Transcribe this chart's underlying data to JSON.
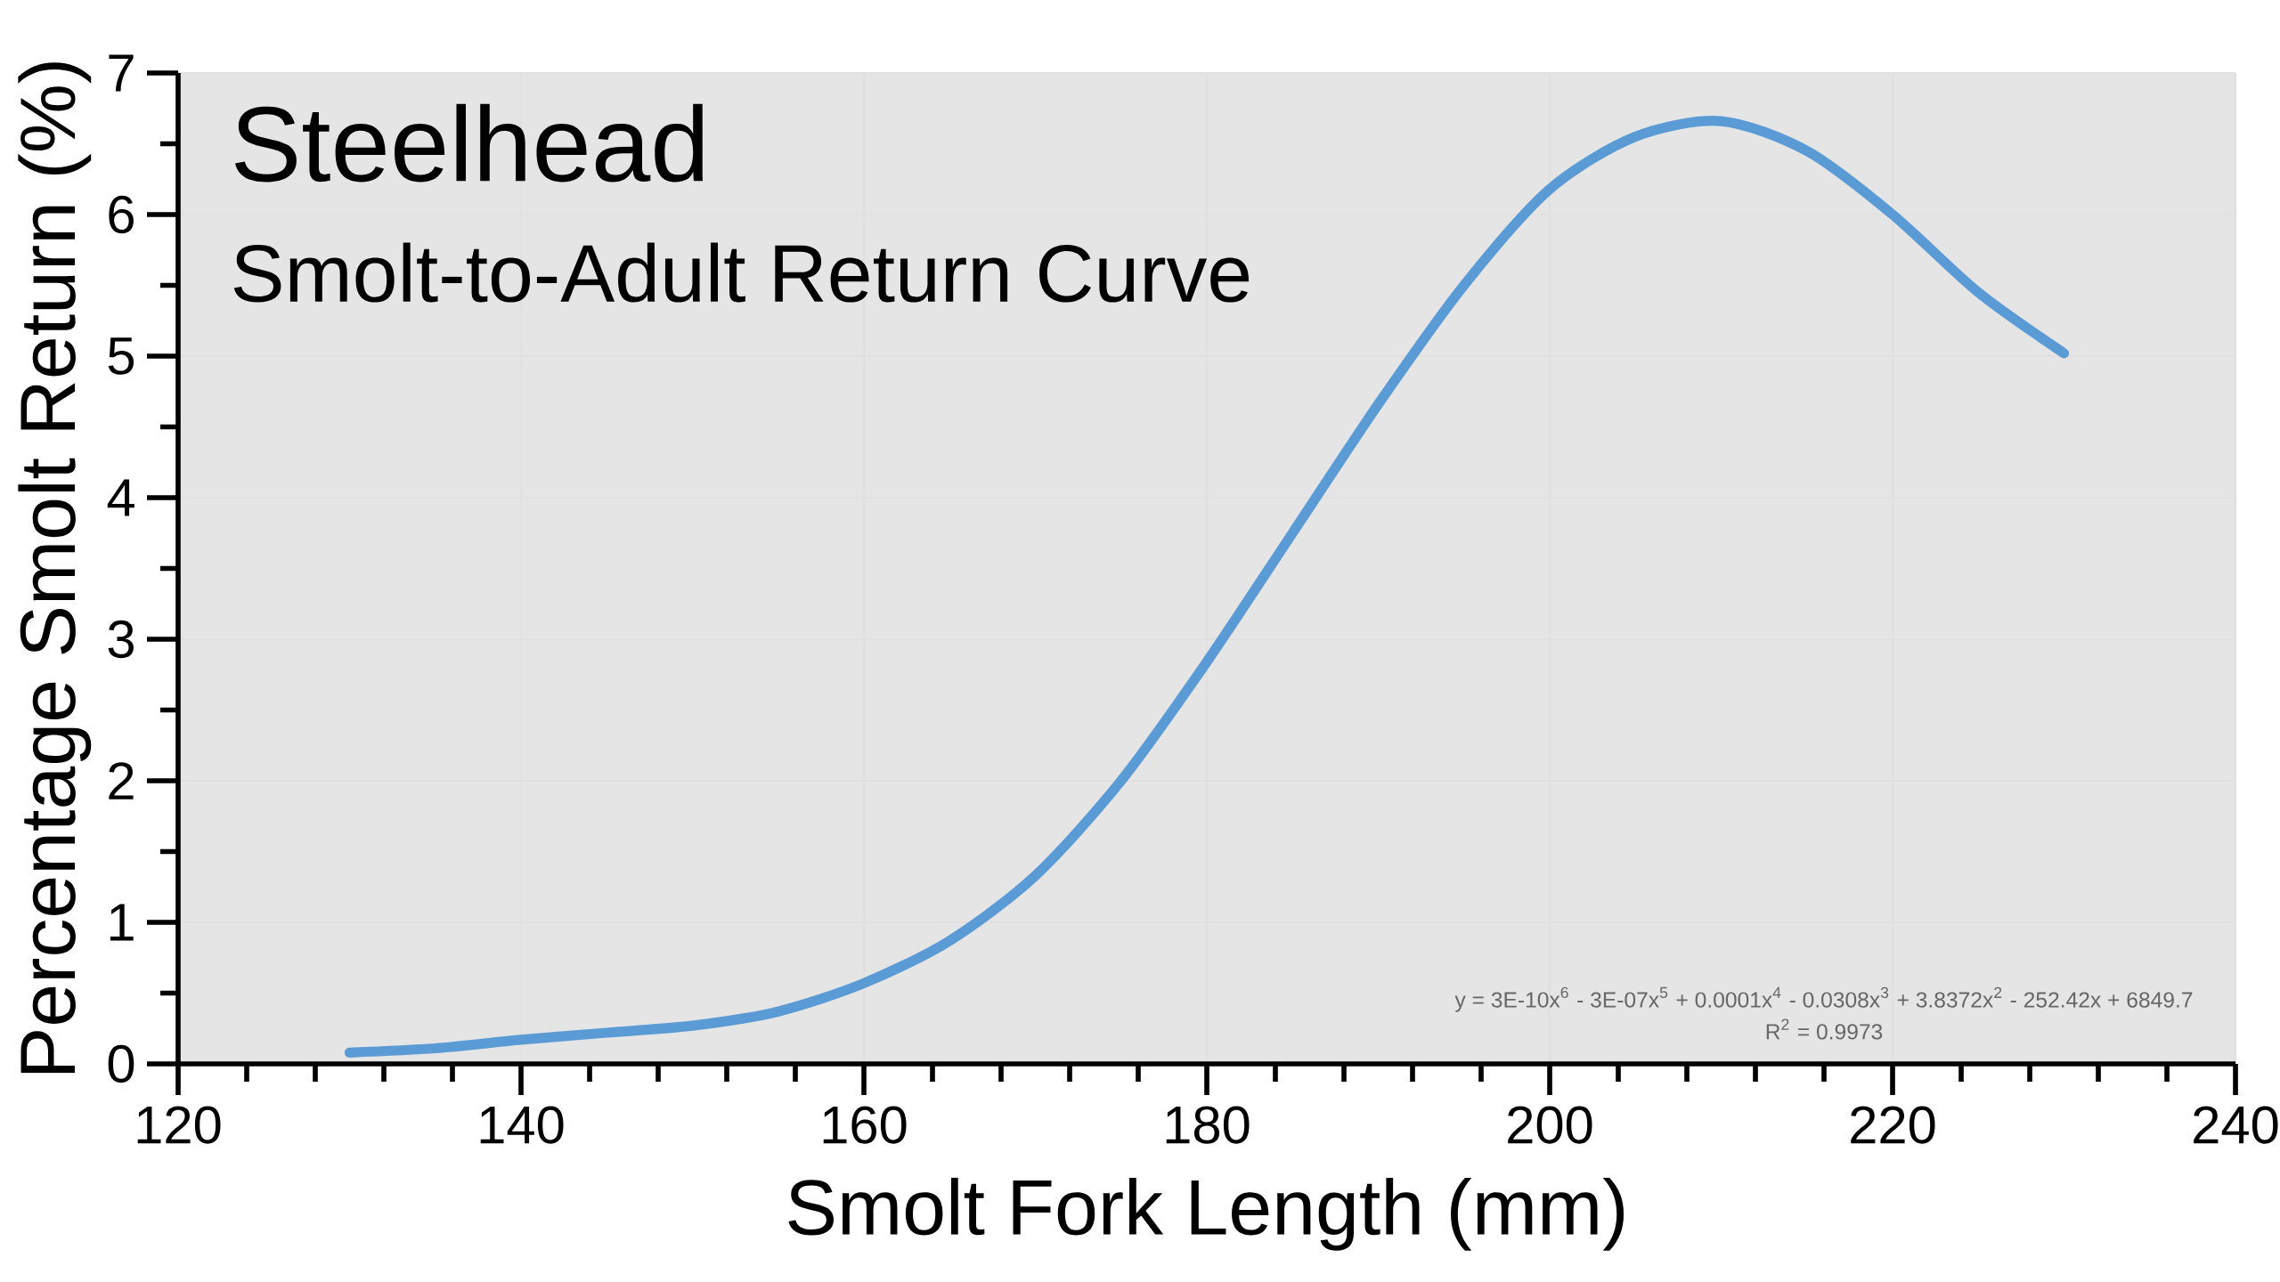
{
  "chart_data": {
    "type": "line",
    "title": "Steelhead",
    "subtitle": "Smolt-to-Adult Return Curve",
    "xlabel": "Smolt Fork Length (mm)",
    "ylabel": "Percentage Smolt Return (%)",
    "x": [
      130,
      135,
      140,
      145,
      150,
      155,
      160,
      165,
      170,
      175,
      180,
      185,
      190,
      195,
      200,
      205,
      210,
      215,
      220,
      225,
      230
    ],
    "series": [
      {
        "color": "#5b9bd5",
        "values": [
          0.08,
          0.11,
          0.17,
          0.22,
          0.27,
          0.37,
          0.57,
          0.87,
          1.33,
          2.0,
          2.84,
          3.75,
          4.66,
          5.5,
          6.18,
          6.55,
          6.66,
          6.45,
          6.0,
          5.45,
          5.02
        ]
      }
    ],
    "xlim": [
      120,
      240
    ],
    "xticks": [
      120,
      140,
      160,
      180,
      200,
      220,
      240
    ],
    "ylim": [
      0,
      7
    ],
    "yticks": [
      0,
      1,
      2,
      3,
      4,
      5,
      6,
      7
    ],
    "grid": true,
    "annotations": [
      "y = 3E-10x$^{6}$ - 3E-07x$^{5}$ + 0.0001x$^{4}$ - 0.0308x$^{3}$ + 3.8372x$^{2}$ - 252.42x + 6849.7",
      "R$^{2}$ = 0.9973"
    ]
  }
}
